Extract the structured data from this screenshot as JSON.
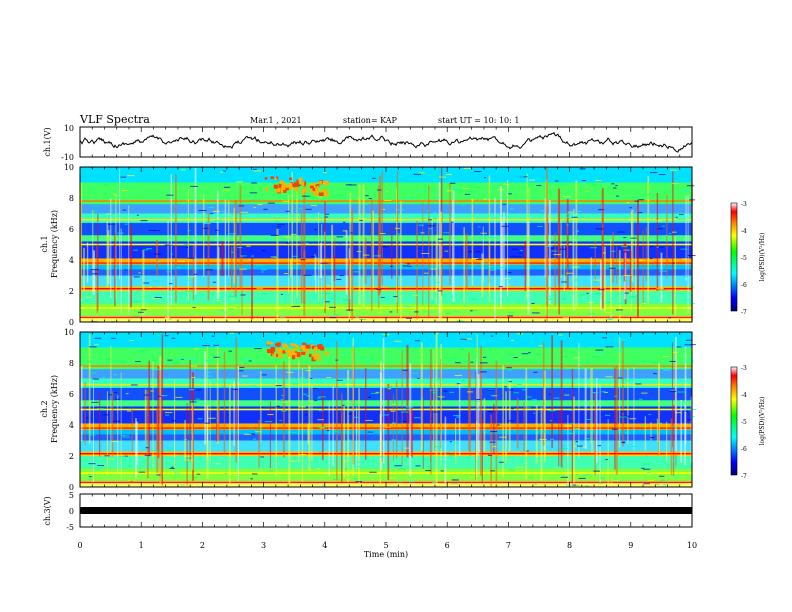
{
  "header": {
    "title": "VLF Spectra",
    "date": "Mar.1 , 2021",
    "station": "station= KAP",
    "start": "start  UT =   10: 10: 1"
  },
  "chart_data": [
    {
      "panel": "ch1-waveform",
      "type": "line",
      "ylabel": "ch.1(V)",
      "ylim": [
        -10,
        10
      ],
      "y_ticks": [
        "10",
        "-10"
      ],
      "xlim": [
        0,
        10
      ]
    },
    {
      "panel": "ch1-spectrogram",
      "type": "heatmap",
      "ylabel": "Frequency (kHz)",
      "ylabel2": "ch.1",
      "ylim": [
        0,
        10
      ],
      "y_ticks": [
        "0",
        "2",
        "4",
        "6",
        "8",
        "10"
      ],
      "xlim": [
        0,
        10
      ],
      "colorbar": {
        "label": "log(PSD)(V²/Hz)",
        "range": [
          -7,
          -3
        ],
        "ticks": [
          "-3",
          "-4",
          "-5",
          "-6",
          "-7"
        ]
      }
    },
    {
      "panel": "ch2-spectrogram",
      "type": "heatmap",
      "ylabel": "Frequency (kHz)",
      "ylabel2": "ch.2",
      "ylim": [
        0,
        10
      ],
      "y_ticks": [
        "0",
        "2",
        "4",
        "6",
        "8",
        "10"
      ],
      "xlim": [
        0,
        10
      ],
      "colorbar": {
        "label": "log(PSD)(V²/Hz)",
        "range": [
          -7,
          -3
        ],
        "ticks": [
          "-3",
          "-4",
          "-5",
          "-6",
          "-7"
        ]
      }
    },
    {
      "panel": "ch3-waveform",
      "type": "line",
      "ylabel": "ch.3(V)",
      "ylim": [
        -5,
        5
      ],
      "y_ticks": [
        "5",
        "0",
        "-5"
      ],
      "xlim": [
        0,
        10
      ]
    }
  ],
  "x_axis": {
    "label": "Time  (min)",
    "ticks": [
      "0",
      "1",
      "2",
      "3",
      "4",
      "5",
      "6",
      "7",
      "8",
      "9",
      "10"
    ]
  },
  "colors": {
    "colormap": [
      "#00007f",
      "#0000ff",
      "#00ffff",
      "#00ff00",
      "#ffff00",
      "#ff8000",
      "#ff0000",
      "#ffffff"
    ]
  }
}
